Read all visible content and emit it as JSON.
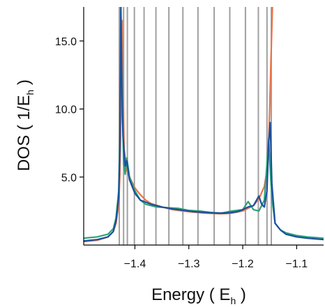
{
  "chart_data": {
    "type": "line",
    "title": "",
    "xlabel": {
      "main": "Energy ( E",
      "sub": "h",
      "end": " )"
    },
    "ylabel": {
      "main": "DOS ( 1/E",
      "sub": "h",
      "end": " )"
    },
    "xlim": [
      -1.495,
      -1.05
    ],
    "ylim": [
      0,
      17.5
    ],
    "xticks": [
      -1.4,
      -1.3,
      -1.2,
      -1.1
    ],
    "xtick_labels": [
      "−1.4",
      "−1.3",
      "−1.2",
      "−1.1"
    ],
    "yticks": [
      5.0,
      10.0,
      15.0
    ],
    "ytick_labels": [
      "5.0",
      "10.0",
      "15.0"
    ],
    "grid": false,
    "legend": "none",
    "vlines": {
      "color": "#a0a0a0",
      "x": [
        -1.429,
        -1.421,
        -1.414,
        -1.401,
        -1.383,
        -1.361,
        -1.337,
        -1.311,
        -1.283,
        -1.253,
        -1.224,
        -1.195,
        -1.171,
        -1.155,
        -1.147
      ]
    },
    "series": [
      {
        "color": "#e8744a",
        "x": [
          -1.495,
          -1.47,
          -1.45,
          -1.44,
          -1.435,
          -1.43,
          -1.428,
          -1.426,
          -1.424,
          -1.42,
          -1.415,
          -1.41,
          -1.4,
          -1.39,
          -1.38,
          -1.37,
          -1.35,
          -1.33,
          -1.3,
          -1.27,
          -1.24,
          -1.22,
          -1.2,
          -1.18,
          -1.17,
          -1.16,
          -1.155,
          -1.152,
          -1.15,
          -1.148,
          -1.146,
          -1.145
        ],
        "y": [
          0.25,
          0.35,
          0.6,
          1.0,
          1.6,
          3.0,
          5.0,
          9.0,
          16.5,
          7.0,
          5.5,
          5.0,
          4.2,
          3.7,
          3.3,
          3.05,
          2.8,
          2.6,
          2.45,
          2.35,
          2.3,
          2.35,
          2.5,
          2.9,
          3.4,
          4.3,
          5.5,
          7.5,
          10.0,
          13.0,
          16.0,
          17.5
        ]
      },
      {
        "color": "#2aa37a",
        "x": [
          -1.495,
          -1.47,
          -1.45,
          -1.44,
          -1.435,
          -1.43,
          -1.428,
          -1.426,
          -1.424,
          -1.421,
          -1.418,
          -1.415,
          -1.41,
          -1.4,
          -1.39,
          -1.38,
          -1.36,
          -1.34,
          -1.32,
          -1.3,
          -1.28,
          -1.26,
          -1.24,
          -1.22,
          -1.2,
          -1.19,
          -1.18,
          -1.17,
          -1.16,
          -1.155,
          -1.152,
          -1.149,
          -1.146,
          -1.14,
          -1.13,
          -1.12,
          -1.1,
          -1.08,
          -1.05
        ],
        "y": [
          0.5,
          0.6,
          0.8,
          1.2,
          2.0,
          4.0,
          8.0,
          17.5,
          12.0,
          6.0,
          5.2,
          6.4,
          5.0,
          4.0,
          3.3,
          3.0,
          2.8,
          2.75,
          2.7,
          2.55,
          2.5,
          2.4,
          2.35,
          2.5,
          2.6,
          3.2,
          2.6,
          2.5,
          3.3,
          6.0,
          7.8,
          5.5,
          3.5,
          1.6,
          1.1,
          0.9,
          0.7,
          0.6,
          0.5
        ]
      },
      {
        "color": "#1c4f9c",
        "x": [
          -1.495,
          -1.47,
          -1.45,
          -1.44,
          -1.435,
          -1.43,
          -1.428,
          -1.426,
          -1.424,
          -1.422,
          -1.418,
          -1.415,
          -1.41,
          -1.4,
          -1.39,
          -1.37,
          -1.35,
          -1.33,
          -1.31,
          -1.29,
          -1.27,
          -1.25,
          -1.23,
          -1.21,
          -1.2,
          -1.19,
          -1.18,
          -1.17,
          -1.165,
          -1.16,
          -1.155,
          -1.152,
          -1.149,
          -1.146,
          -1.14,
          -1.13,
          -1.12,
          -1.1,
          -1.08,
          -1.05
        ],
        "y": [
          0.3,
          0.4,
          0.6,
          1.0,
          1.8,
          3.5,
          7.0,
          17.5,
          11.0,
          8.0,
          5.8,
          6.2,
          4.8,
          3.8,
          3.3,
          3.0,
          2.8,
          2.65,
          2.55,
          2.45,
          2.4,
          2.35,
          2.35,
          2.45,
          2.6,
          2.8,
          2.9,
          3.6,
          3.0,
          2.8,
          4.0,
          7.5,
          9.0,
          4.5,
          1.6,
          1.1,
          0.8,
          0.6,
          0.5,
          0.4
        ]
      }
    ]
  }
}
